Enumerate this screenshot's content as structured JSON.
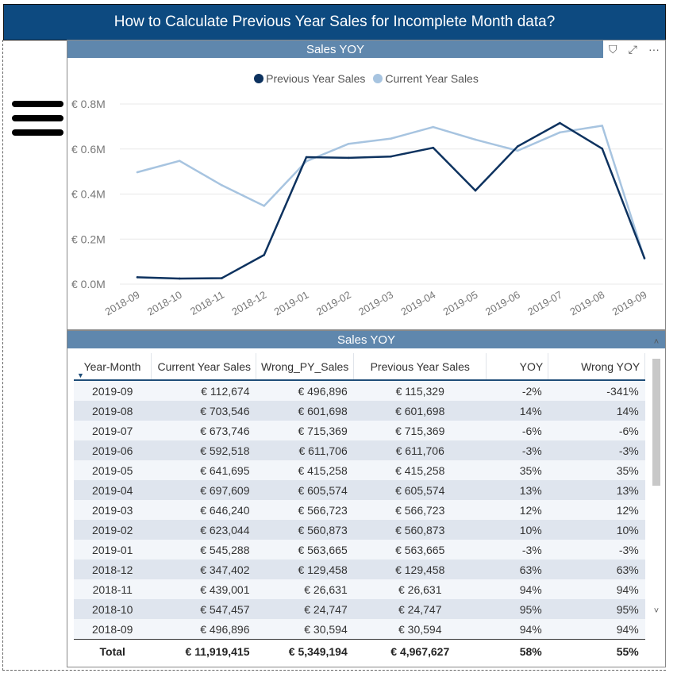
{
  "title": "How to Calculate Previous Year Sales for Incomplete Month data?",
  "chart_visual": {
    "header": "Sales YOY",
    "icons": [
      "filter-icon",
      "focus-mode-icon",
      "more-options-icon"
    ]
  },
  "table_visual": {
    "header": "Sales YOY",
    "columns": [
      "Year-Month",
      "Current Year Sales",
      "Wrong_PY_Sales",
      "Previous Year Sales",
      "YOY",
      "Wrong YOY"
    ],
    "rows": [
      [
        "2019-09",
        "€ 112,674",
        "€ 496,896",
        "€ 115,329",
        "-2%",
        "-341%"
      ],
      [
        "2019-08",
        "€ 703,546",
        "€ 601,698",
        "€ 601,698",
        "14%",
        "14%"
      ],
      [
        "2019-07",
        "€ 673,746",
        "€ 715,369",
        "€ 715,369",
        "-6%",
        "-6%"
      ],
      [
        "2019-06",
        "€ 592,518",
        "€ 611,706",
        "€ 611,706",
        "-3%",
        "-3%"
      ],
      [
        "2019-05",
        "€ 641,695",
        "€ 415,258",
        "€ 415,258",
        "35%",
        "35%"
      ],
      [
        "2019-04",
        "€ 697,609",
        "€ 605,574",
        "€ 605,574",
        "13%",
        "13%"
      ],
      [
        "2019-03",
        "€ 646,240",
        "€ 566,723",
        "€ 566,723",
        "12%",
        "12%"
      ],
      [
        "2019-02",
        "€ 623,044",
        "€ 560,873",
        "€ 560,873",
        "10%",
        "10%"
      ],
      [
        "2019-01",
        "€ 545,288",
        "€ 563,665",
        "€ 563,665",
        "-3%",
        "-3%"
      ],
      [
        "2018-12",
        "€ 347,402",
        "€ 129,458",
        "€ 129,458",
        "63%",
        "63%"
      ],
      [
        "2018-11",
        "€ 439,001",
        "€ 26,631",
        "€ 26,631",
        "94%",
        "94%"
      ],
      [
        "2018-10",
        "€ 547,457",
        "€ 24,747",
        "€ 24,747",
        "95%",
        "95%"
      ],
      [
        "2018-09",
        "€ 496,896",
        "€ 30,594",
        "€ 30,594",
        "94%",
        "94%"
      ]
    ],
    "total": [
      "Total",
      "€ 11,919,415",
      "€ 5,349,194",
      "€ 4,967,627",
      "58%",
      "55%"
    ]
  },
  "chart_data": {
    "type": "line",
    "title": "Sales YOY",
    "legend_position": "top-center",
    "grid": true,
    "x": [
      "2018-09",
      "2018-10",
      "2018-11",
      "2018-12",
      "2019-01",
      "2019-02",
      "2019-03",
      "2019-04",
      "2019-05",
      "2019-06",
      "2019-07",
      "2019-08",
      "2019-09"
    ],
    "yticks": [
      "€ 0.0M",
      "€ 0.2M",
      "€ 0.4M",
      "€ 0.6M",
      "€ 0.8M"
    ],
    "ylim": [
      0,
      800000
    ],
    "series": [
      {
        "name": "Previous Year Sales",
        "color": "#0d325f",
        "values": [
          30594,
          24747,
          26631,
          129458,
          563665,
          560873,
          566723,
          605574,
          415258,
          611706,
          715369,
          601698,
          115329
        ]
      },
      {
        "name": "Current Year Sales",
        "color": "#a7c4e0",
        "values": [
          496896,
          547457,
          439001,
          347402,
          545288,
          623044,
          646240,
          697609,
          641695,
          592518,
          673746,
          703546,
          112674
        ]
      }
    ]
  }
}
